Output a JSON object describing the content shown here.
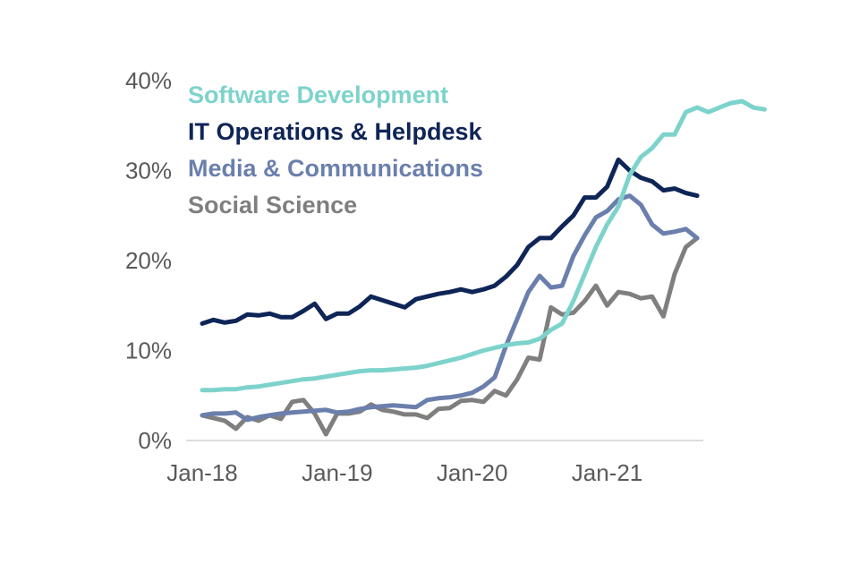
{
  "chart_data": {
    "type": "line",
    "title": "",
    "xlabel": "",
    "ylabel": "",
    "x_start": "Jan-18",
    "x_period": "month",
    "x_tick_labels": [
      "Jan-18",
      "Jan-19",
      "Jan-20",
      "Jan-21"
    ],
    "y_tick_labels": [
      "0%",
      "10%",
      "20%",
      "30%",
      "40%"
    ],
    "ylim": [
      0,
      40
    ],
    "grid": false,
    "legend_position": "top-left",
    "series": [
      {
        "name": "Software Development",
        "color": "#7dd3cc",
        "values": [
          5.6,
          5.6,
          5.7,
          5.7,
          5.9,
          6.0,
          6.2,
          6.4,
          6.6,
          6.8,
          6.9,
          7.1,
          7.3,
          7.5,
          7.7,
          7.8,
          7.8,
          7.9,
          8.0,
          8.1,
          8.3,
          8.6,
          8.9,
          9.2,
          9.6,
          10.0,
          10.3,
          10.6,
          10.8,
          10.9,
          11.3,
          12.3,
          13.0,
          15.5,
          18.5,
          21.5,
          24.0,
          26.0,
          29.5,
          31.5,
          32.5,
          34.0,
          34.0,
          36.5,
          37.0,
          36.5,
          37.0,
          37.5,
          37.7,
          37.0,
          36.8
        ]
      },
      {
        "name": "IT Operations & Helpdesk",
        "color": "#0f2557",
        "values": [
          13.0,
          13.4,
          13.1,
          13.3,
          14.0,
          13.9,
          14.1,
          13.7,
          13.7,
          14.4,
          15.2,
          13.5,
          14.1,
          14.1,
          14.9,
          16.0,
          15.6,
          15.2,
          14.8,
          15.7,
          16.0,
          16.3,
          16.5,
          16.8,
          16.5,
          16.8,
          17.2,
          18.2,
          19.5,
          21.5,
          22.5,
          22.5,
          23.8,
          25.0,
          27.0,
          27.0,
          28.2,
          31.2,
          30.0,
          29.2,
          28.8,
          27.8,
          28.0,
          27.5,
          27.2
        ]
      },
      {
        "name": "Media & Communications",
        "color": "#6b7fad",
        "values": [
          2.8,
          3.0,
          3.0,
          3.1,
          2.3,
          2.6,
          2.8,
          3.0,
          3.1,
          3.2,
          3.3,
          3.4,
          3.1,
          3.2,
          3.5,
          3.7,
          3.8,
          3.9,
          3.8,
          3.7,
          4.5,
          4.7,
          4.8,
          5.0,
          5.3,
          6.0,
          7.0,
          10.5,
          13.5,
          16.5,
          18.3,
          17.0,
          17.2,
          20.5,
          22.8,
          24.8,
          25.5,
          26.8,
          27.2,
          26.2,
          24.0,
          23.0,
          23.2,
          23.5,
          22.5
        ]
      },
      {
        "name": "Social Science",
        "color": "#7f7f7f",
        "values": [
          2.8,
          2.5,
          2.2,
          1.3,
          2.6,
          2.2,
          2.8,
          2.4,
          4.3,
          4.5,
          3.0,
          0.7,
          3.0,
          3.0,
          3.2,
          4.0,
          3.4,
          3.2,
          2.9,
          2.9,
          2.5,
          3.5,
          3.6,
          4.4,
          4.5,
          4.3,
          5.5,
          5.0,
          6.8,
          9.2,
          9.0,
          14.8,
          14.0,
          14.2,
          15.5,
          17.2,
          15.0,
          16.5,
          16.3,
          15.8,
          16.0,
          13.8,
          18.5,
          21.5,
          22.5
        ]
      }
    ]
  }
}
